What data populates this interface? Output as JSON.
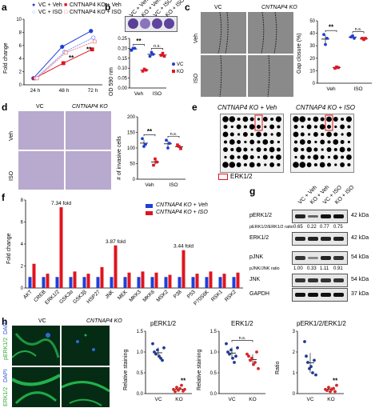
{
  "panels": {
    "a": {
      "letter": "a",
      "legend": [
        "VC + Veh",
        "CNTNAP4 KO + Veh",
        "VC + ISO",
        "CNTNAP4 KO + ISO"
      ],
      "ylabel": "Fold change",
      "yticks": [
        "0",
        "2",
        "4",
        "6",
        "8",
        "10"
      ],
      "categories": [
        "24 h",
        "48 h",
        "72 h"
      ],
      "sig": "**"
    },
    "b": {
      "letter": "b",
      "cond": [
        "VC + Veh",
        "KO + Veh",
        "VC + ISO",
        "KO + ISO"
      ],
      "ylabel": "OD 590 nm",
      "yticks": [
        "0.00",
        "0.05",
        "0.10",
        "0.15",
        "0.20",
        "0.25"
      ],
      "categories": [
        "Veh",
        "ISO"
      ],
      "legend": [
        "VC",
        "KO"
      ],
      "sig": "**",
      "ns": "n.s."
    },
    "c": {
      "letter": "c",
      "col_vc": "VC",
      "col_ko": "CNTNAP4 KO",
      "row_veh": "Veh",
      "row_iso": "ISO",
      "ylabel": "Gap closure (%)",
      "yticks": [
        "0",
        "10",
        "20",
        "30",
        "40",
        "50"
      ],
      "categories": [
        "Veh",
        "ISO"
      ],
      "sig": "**",
      "ns": "n.s."
    },
    "d": {
      "letter": "d",
      "col_vc": "VC",
      "col_ko": "CNTNAP4 KO",
      "row_veh": "Veh",
      "row_iso": "ISO",
      "ylabel": "# of invasive cells",
      "yticks": [
        "0",
        "50",
        "100",
        "150",
        "200"
      ],
      "categories": [
        "Veh",
        "ISO"
      ],
      "sig": "**",
      "ns": "n.s."
    },
    "e": {
      "letter": "e",
      "left_title": "CNTNAP4 KO + Veh",
      "right_title": "CNTNAP4 KO + ISO",
      "legend": "ERK1/2"
    },
    "f": {
      "letter": "f",
      "legend": [
        "CNTNAP4 KO + Veh",
        "CNTNAP4 KO + ISO"
      ],
      "ylabel": "Fold change",
      "yticks": [
        "0",
        "2",
        "4",
        "6",
        "8"
      ],
      "annotations": [
        "7.34 fold",
        "3.87 fold",
        "3.44 fold"
      ]
    },
    "g": {
      "letter": "g",
      "cond": [
        "VC + Veh",
        "KO + Veh",
        "VC + ISO",
        "KO + ISO"
      ],
      "rows": [
        {
          "label": "pERK1/2",
          "kda": "42 kDa"
        },
        {
          "label": "ERK1/2",
          "kda": "42 kDa"
        },
        {
          "label": "pJNK",
          "kda": "54 kDa"
        },
        {
          "label": "JNK",
          "kda": "54 kDa"
        },
        {
          "label": "GAPDH",
          "kda": "37 kDa"
        }
      ],
      "ratio1_label": "pERK1/2/ERK1/2 ratio",
      "ratio1": [
        "0.65",
        "0.22",
        "0.77",
        "0.75"
      ],
      "ratio2_label": "pJNK/JNK ratio",
      "ratio2": [
        "1.00",
        "0.33",
        "1.11",
        "0.91"
      ]
    },
    "h": {
      "letter": "h",
      "col_vc": "VC",
      "col_ko": "CNTNAP4 KO",
      "row1_a": "pERK1/2",
      "row1_b": "DAPI",
      "row2_a": "ERK1/2",
      "row2_b": "DAPI",
      "plot1_title": "pERK1/2",
      "plot2_title": "ERK1/2",
      "plot3_title": "pERK1/2/ERK1/2",
      "plot1_ylabel": "Relative staining",
      "plot2_ylabel": "Relative staining",
      "plot3_ylabel": "Ratio",
      "yticks12": [
        "0.0",
        "0.5",
        "1.0",
        "1.5"
      ],
      "yticks3": [
        "0",
        "1",
        "2",
        "3"
      ],
      "categories": [
        "VC",
        "KO"
      ],
      "sig": "**",
      "ns": "n.s."
    }
  },
  "chart_data": [
    {
      "type": "line",
      "panel": "a",
      "categories": [
        "24 h",
        "48 h",
        "72 h"
      ],
      "ylabel": "Fold change",
      "ylim": [
        0,
        10
      ],
      "series": [
        {
          "name": "VC + Veh",
          "values": [
            1.0,
            5.8,
            8.2
          ],
          "color": "#1f3fd6"
        },
        {
          "name": "CNTNAP4 KO + Veh",
          "values": [
            1.0,
            3.3,
            5.4
          ],
          "color": "#e0141e"
        },
        {
          "name": "VC + ISO",
          "values": [
            1.0,
            5.0,
            7.2
          ],
          "color": "#7a8cff"
        },
        {
          "name": "CNTNAP4 KO + ISO",
          "values": [
            1.0,
            4.9,
            6.6
          ],
          "color": "#f08080"
        }
      ]
    },
    {
      "type": "scatter",
      "panel": "b",
      "categories": [
        "Veh",
        "ISO"
      ],
      "ylabel": "OD 590 nm",
      "ylim": [
        0,
        0.25
      ],
      "series": [
        {
          "name": "VC",
          "values": [
            [
              0.19,
              0.2,
              0.2
            ],
            [
              0.16,
              0.18,
              0.17
            ]
          ],
          "color": "#1f3fd6"
        },
        {
          "name": "KO",
          "values": [
            [
              0.085,
              0.095,
              0.09
            ],
            [
              0.165,
              0.175,
              0.16
            ]
          ],
          "color": "#e0141e"
        }
      ]
    },
    {
      "type": "scatter",
      "panel": "c",
      "categories": [
        "Veh",
        "ISO"
      ],
      "ylabel": "Gap closure (%)",
      "ylim": [
        0,
        50
      ],
      "series": [
        {
          "name": "VC",
          "values": [
            [
              39,
              31,
              36
            ],
            [
              37,
              38,
              36
            ]
          ],
          "color": "#1f3fd6"
        },
        {
          "name": "KO",
          "values": [
            [
              12,
              13,
              12.5
            ],
            [
              36,
              35,
              36
            ]
          ],
          "color": "#e0141e"
        }
      ]
    },
    {
      "type": "scatter",
      "panel": "d",
      "categories": [
        "Veh",
        "ISO"
      ],
      "ylabel": "# of invasive cells",
      "ylim": [
        0,
        200
      ],
      "series": [
        {
          "name": "VC",
          "values": [
            [
              130,
              105,
              112
            ],
            [
              125,
              100,
              115
            ]
          ],
          "color": "#1f3fd6"
        },
        {
          "name": "KO",
          "values": [
            [
              45,
              65,
              55
            ],
            [
              110,
              105,
              98
            ]
          ],
          "color": "#e0141e"
        }
      ]
    },
    {
      "type": "bar",
      "panel": "f",
      "categories": [
        "AKT",
        "CREB",
        "ERK1/2",
        "GSK3α",
        "GSK3β",
        "HSP27",
        "JNK",
        "MEK",
        "MKK3",
        "MKK6",
        "MSK2",
        "P38",
        "P53",
        "P70S6K",
        "RSK1",
        "RSK2"
      ],
      "ylabel": "Fold change",
      "ylim": [
        0,
        8
      ],
      "series": [
        {
          "name": "CNTNAP4 KO + Veh",
          "values": [
            1,
            1,
            1,
            1,
            1,
            1,
            1,
            1,
            1,
            1,
            1,
            1,
            1,
            1,
            1,
            1
          ],
          "color": "#1f3fd6"
        },
        {
          "name": "CNTNAP4 KO + ISO",
          "values": [
            2.2,
            1.3,
            7.34,
            1.5,
            1.3,
            1.9,
            3.87,
            1.4,
            1.5,
            1.4,
            1.2,
            3.44,
            1.3,
            1.5,
            1.3,
            1.4
          ],
          "color": "#e0141e"
        }
      ]
    },
    {
      "type": "scatter",
      "panel": "h-pERK1/2",
      "categories": [
        "VC",
        "KO"
      ],
      "ylabel": "Relative staining",
      "ylim": [
        0,
        1.5
      ],
      "series": [
        {
          "name": "VC",
          "values": [
            1.2,
            1.0,
            0.95,
            1.05,
            0.9,
            0.85,
            0.8,
            1.1
          ],
          "color": "#1f3a8f"
        },
        {
          "name": "KO",
          "values": [
            0.1,
            0.05,
            0.15,
            0.08,
            0.12,
            0.2,
            0.06,
            0.1
          ],
          "color": "#d62728"
        }
      ]
    },
    {
      "type": "scatter",
      "panel": "h-ERK1/2",
      "categories": [
        "VC",
        "KO"
      ],
      "ylabel": "Relative staining",
      "ylim": [
        0,
        1.5
      ],
      "series": [
        {
          "name": "VC",
          "values": [
            1.2,
            1.0,
            0.95,
            1.05,
            0.85,
            0.75,
            0.9,
            1.1
          ],
          "color": "#1f3a8f"
        },
        {
          "name": "KO",
          "values": [
            0.95,
            0.9,
            0.8,
            0.85,
            0.7,
            0.75,
            1.0,
            0.6
          ],
          "color": "#d62728"
        }
      ]
    },
    {
      "type": "scatter",
      "panel": "h-ratio",
      "categories": [
        "VC",
        "KO"
      ],
      "ylabel": "Ratio",
      "ylim": [
        0,
        3
      ],
      "series": [
        {
          "name": "VC",
          "values": [
            2.5,
            1.8,
            1.5,
            1.2,
            1.3,
            1.0,
            1.6,
            0.9
          ],
          "color": "#1f3a8f"
        },
        {
          "name": "KO",
          "values": [
            0.2,
            0.15,
            0.3,
            0.1,
            0.2,
            0.25,
            0.1,
            0.4
          ],
          "color": "#d62728"
        }
      ]
    }
  ]
}
